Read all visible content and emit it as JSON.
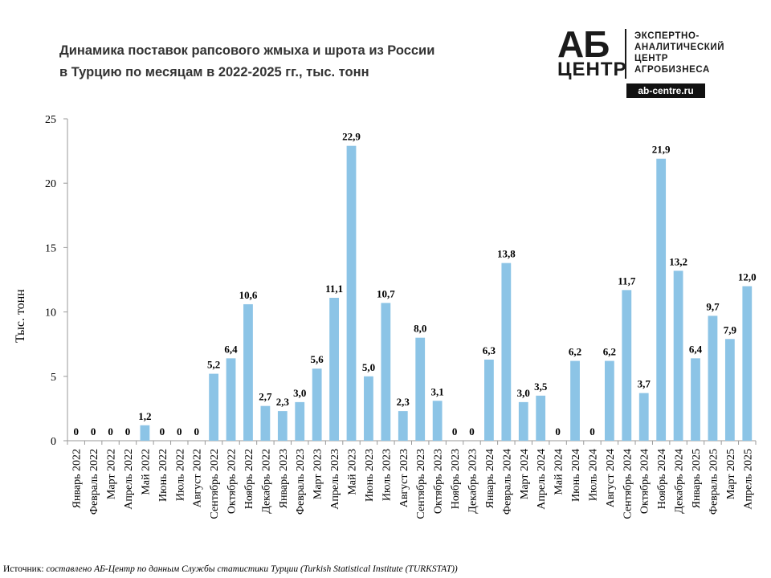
{
  "title": {
    "line1": "Динамика поставок рапсового жмыха и шрота из России",
    "line2": "в Турцию по месяцам в 2022-2025 гг., тыс. тонн"
  },
  "logo": {
    "mark_top": "АБ",
    "mark_bottom": "ЦЕНТР",
    "text_lines": [
      "ЭКСПЕРТНО-",
      "АНАЛИТИЧЕСКИЙ",
      "ЦЕНТР",
      "АГРОБИЗНЕСА"
    ],
    "site": "ab-centre.ru"
  },
  "source": {
    "lead": "Источник:",
    "rest": " составлено АБ-Центр по данным Службы статистики Турции (Turkish Statistical Institute (TURKSTAT))"
  },
  "colors": {
    "bar": "#8cc4e6",
    "axis": "#9a9a9a"
  },
  "chart_data": {
    "type": "bar",
    "ylabel": "Тыс. тонн",
    "ylim": [
      0,
      25
    ],
    "yticks": [
      0,
      5,
      10,
      15,
      20,
      25
    ],
    "grid": false,
    "categories": [
      "Январь 2022",
      "Февраль 2022",
      "Март 2022",
      "Апрель 2022",
      "Май 2022",
      "Июнь 2022",
      "Июль 2022",
      "Август 2022",
      "Сентябрь 2022",
      "Октябрь 2022",
      "Ноябрь 2022",
      "Декабрь 2022",
      "Январь 2023",
      "Февраль 2023",
      "Март 2023",
      "Апрель 2023",
      "Май 2023",
      "Июнь 2023",
      "Июль 2023",
      "Август 2023",
      "Сентябрь 2023",
      "Октябрь 2023",
      "Ноябрь 2023",
      "Декабрь 2023",
      "Январь 2024",
      "Февраль 2024",
      "Март 2024",
      "Апрель 2024",
      "Май 2024",
      "Июнь 2024",
      "Июль 2024",
      "Август 2024",
      "Сентябрь 2024",
      "Октябрь 2024",
      "Ноябрь 2024",
      "Декабрь 2024",
      "Январь 2025",
      "Февраль 2025",
      "Март 2025",
      "Апрель 2025"
    ],
    "values": [
      0,
      0,
      0,
      0,
      1.2,
      0,
      0,
      0,
      5.2,
      6.4,
      10.6,
      2.7,
      2.3,
      3.0,
      5.6,
      11.1,
      22.9,
      5.0,
      10.7,
      2.3,
      8.0,
      3.1,
      0,
      0,
      6.3,
      13.8,
      3.0,
      3.5,
      0,
      6.2,
      0,
      6.2,
      11.7,
      3.7,
      21.9,
      13.2,
      6.4,
      9.7,
      7.9,
      12.0
    ],
    "labels": [
      "0",
      "0",
      "0",
      "0",
      "1,2",
      "0",
      "0",
      "0",
      "5,2",
      "6,4",
      "10,6",
      "2,7",
      "2,3",
      "3,0",
      "5,6",
      "11,1",
      "22,9",
      "5,0",
      "10,7",
      "2,3",
      "8,0",
      "3,1",
      "0",
      "0",
      "6,3",
      "13,8",
      "3,0",
      "3,5",
      "0",
      "6,2",
      "0",
      "6,2",
      "11,7",
      "3,7",
      "21,9",
      "13,2",
      "6,4",
      "9,7",
      "7,9",
      "12,0"
    ]
  }
}
